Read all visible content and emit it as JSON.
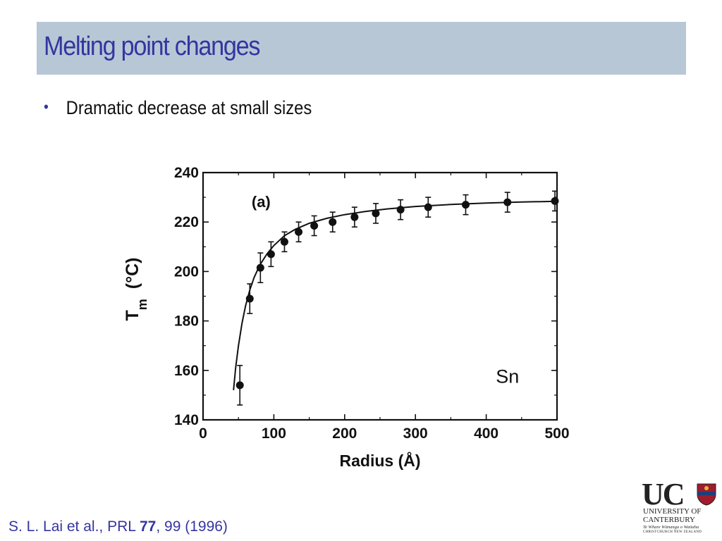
{
  "slide": {
    "title": "Melting point changes",
    "bullets": [
      {
        "symbol": "•",
        "text": "Dramatic decrease at small sizes"
      }
    ],
    "citation": {
      "prefix": "S. L. Lai et al., PRL ",
      "volume": "77",
      "suffix": ", 99 (1996)"
    }
  },
  "logo": {
    "mark": "UC",
    "line1": "UNIVERSITY OF",
    "line2": "CANTERBURY",
    "line3": "Te Whare Wānanga o Waitaha",
    "line4": "CHRISTCHURCH NEW ZEALAND",
    "crest_colors": [
      "#a01c2c",
      "#1f3f7a",
      "#e0b838"
    ]
  },
  "chart_data": {
    "type": "scatter",
    "panel_label": "(a)",
    "annotation": "Sn",
    "xlabel": "Radius  (Å)",
    "ylabel_main": "T",
    "ylabel_sub": "m",
    "ylabel_unit": "(°C)",
    "xlim": [
      0,
      500
    ],
    "ylim": [
      140,
      240
    ],
    "xticks": [
      0,
      100,
      200,
      300,
      400,
      500
    ],
    "yticks": [
      140,
      160,
      180,
      200,
      220,
      240
    ],
    "points": [
      {
        "x": 52,
        "y": 154,
        "err": 8
      },
      {
        "x": 66,
        "y": 189,
        "err": 6
      },
      {
        "x": 81,
        "y": 201.5,
        "err": 6
      },
      {
        "x": 96,
        "y": 207,
        "err": 5
      },
      {
        "x": 115,
        "y": 212,
        "err": 4
      },
      {
        "x": 135,
        "y": 216,
        "err": 4
      },
      {
        "x": 157,
        "y": 218.5,
        "err": 4
      },
      {
        "x": 183,
        "y": 220,
        "err": 4
      },
      {
        "x": 214,
        "y": 222,
        "err": 4
      },
      {
        "x": 244,
        "y": 223.5,
        "err": 4
      },
      {
        "x": 279,
        "y": 225,
        "err": 4
      },
      {
        "x": 318,
        "y": 226,
        "err": 4
      },
      {
        "x": 371,
        "y": 227,
        "err": 4
      },
      {
        "x": 430,
        "y": 228,
        "err": 4
      },
      {
        "x": 497,
        "y": 228.5,
        "err": 4
      }
    ],
    "fit_curve": {
      "x": [
        43,
        46,
        50,
        55,
        60,
        66,
        72,
        80,
        90,
        100,
        115,
        130,
        150,
        175,
        200,
        230,
        260,
        300,
        350,
        400,
        450,
        500
      ],
      "y": [
        152,
        161,
        170,
        179,
        186,
        192.5,
        197.5,
        202.5,
        207,
        210.5,
        214.5,
        217,
        219.5,
        221.5,
        223,
        224.3,
        225.3,
        226.3,
        227.1,
        227.7,
        228.1,
        228.4
      ]
    },
    "colors": {
      "marks": "#111111",
      "axes": "#111111"
    }
  }
}
